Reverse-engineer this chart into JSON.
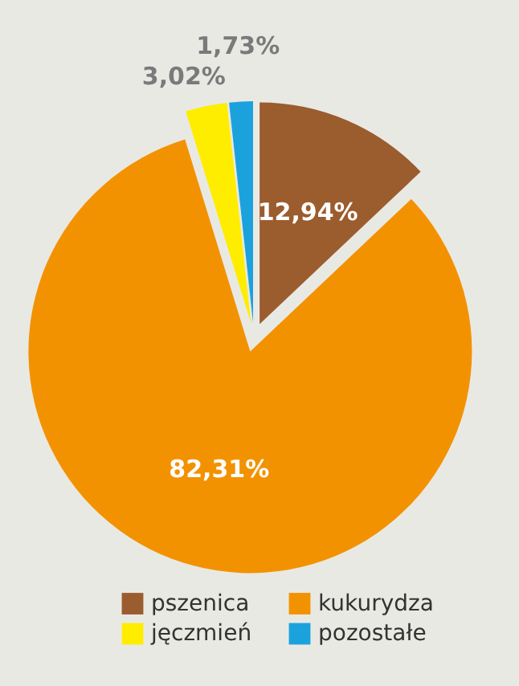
{
  "chart_data": {
    "type": "pie",
    "categories": [
      "pszenica",
      "kukurydza",
      "jęczmień",
      "pozostałe"
    ],
    "values": [
      12.94,
      82.31,
      3.02,
      1.73
    ],
    "colors": [
      "#9b5c2e",
      "#f39200",
      "#ffed00",
      "#1ba2dc"
    ],
    "value_labels": [
      "12,94%",
      "82,31%",
      "3,02%",
      "1,73%"
    ],
    "legend": "bottom"
  }
}
